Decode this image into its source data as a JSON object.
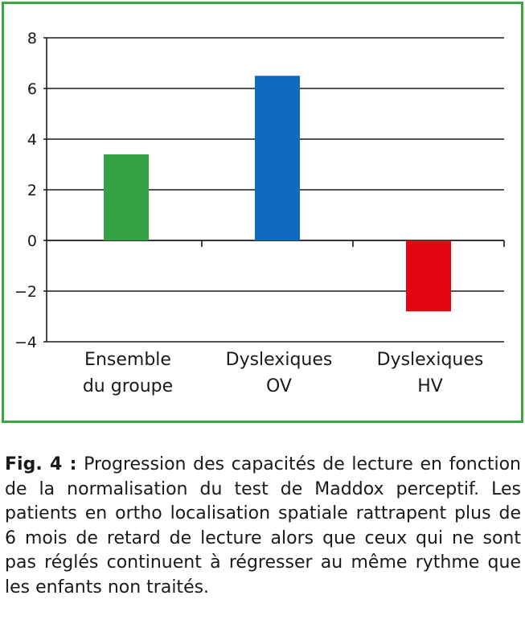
{
  "chart_data": {
    "type": "bar",
    "categories": [
      "Ensemble du groupe",
      "Dyslexiques OV",
      "Dyslexiques HV"
    ],
    "category_lines": [
      [
        "Ensemble",
        "du groupe"
      ],
      [
        "Dyslexiques",
        "OV"
      ],
      [
        "Dyslexiques",
        "HV"
      ]
    ],
    "values": [
      3.4,
      6.5,
      -2.8
    ],
    "colors": [
      "#34a244",
      "#0e6bbf",
      "#e30613"
    ],
    "ylim": [
      -4,
      8
    ],
    "yticks": [
      "−4",
      "−2",
      "0",
      "2",
      "4",
      "6",
      "8"
    ],
    "ytick_values": [
      -4,
      -2,
      0,
      2,
      4,
      6,
      8
    ],
    "grid": true
  },
  "frame_color": "#3aa63f",
  "caption": {
    "label": "Fig. 4 :",
    "text": " Progression des capacités de lecture en fonction de la normalisation du test de Maddox perceptif. Les patients en ortho localisation spatiale rattrapent plus de 6 mois de retard de lecture alors que ceux qui ne sont pas réglés continuent à régresser au même rythme que les enfants non traités."
  }
}
